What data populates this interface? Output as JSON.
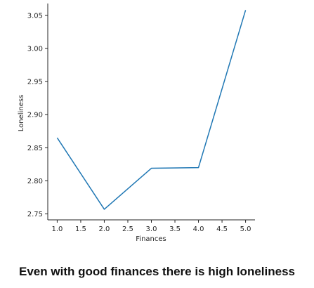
{
  "chart_data": {
    "type": "line",
    "title": "",
    "xlabel": "Finances",
    "ylabel": "Loneliness",
    "x": [
      1.0,
      2.0,
      3.0,
      4.0,
      5.0
    ],
    "series": [
      {
        "values": [
          2.865,
          2.757,
          2.819,
          2.82,
          3.058
        ]
      }
    ],
    "xlim": [
      0.8,
      5.2
    ],
    "ylim": [
      2.741,
      3.068
    ],
    "xticks": [
      "1.0",
      "1.5",
      "2.0",
      "2.5",
      "3.0",
      "3.5",
      "4.0",
      "4.5",
      "5.0"
    ],
    "yticks": [
      "2.75",
      "2.80",
      "2.85",
      "2.90",
      "2.95",
      "3.00",
      "3.05"
    ],
    "grid": false,
    "line_color": "#1f77b4"
  },
  "caption": "Even with good finances there is high loneliness"
}
